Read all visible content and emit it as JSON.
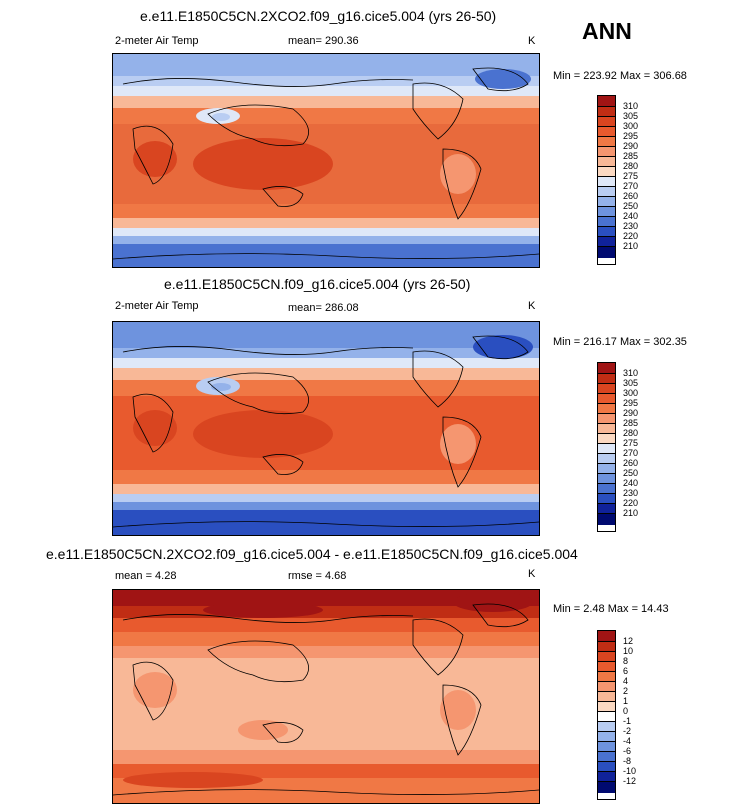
{
  "season": "ANN",
  "panels": [
    {
      "title": "e.e11.E1850C5CN.2XCO2.f09_g16.cice5.004 (yrs 26-50)",
      "variable": "2-meter Air Temp",
      "stat_center": "mean= 290.36",
      "units": "K",
      "minmax": "Min = 223.92 Max = 306.68",
      "levels": [
        "310",
        "305",
        "300",
        "295",
        "290",
        "285",
        "280",
        "275",
        "270",
        "260",
        "250",
        "240",
        "230",
        "220",
        "210"
      ],
      "colors": [
        "#a01414",
        "#c02d14",
        "#d94520",
        "#e85a2e",
        "#f07845",
        "#f59670",
        "#f8b897",
        "#fbd9c2",
        "#dfe8f8",
        "#b9cdf2",
        "#94b2ea",
        "#6e93de",
        "#4a72d0",
        "#2a4fc0",
        "#10229a",
        "#000a70"
      ]
    },
    {
      "title": "e.e11.E1850C5CN.f09_g16.cice5.004 (yrs 26-50)",
      "variable": "2-meter Air Temp",
      "stat_center": "mean= 286.08",
      "units": "K",
      "minmax": "Min = 216.17 Max = 302.35",
      "levels": [
        "310",
        "305",
        "300",
        "295",
        "290",
        "285",
        "280",
        "275",
        "270",
        "260",
        "250",
        "240",
        "230",
        "220",
        "210"
      ],
      "colors": [
        "#a01414",
        "#c02d14",
        "#d94520",
        "#e85a2e",
        "#f07845",
        "#f59670",
        "#f8b897",
        "#fbd9c2",
        "#dfe8f8",
        "#b9cdf2",
        "#94b2ea",
        "#6e93de",
        "#4a72d0",
        "#2a4fc0",
        "#10229a",
        "#000a70"
      ]
    },
    {
      "title": "e.e11.E1850C5CN.2XCO2.f09_g16.cice5.004 - e.e11.E1850C5CN.f09_g16.cice5.004",
      "variable": "mean =  4.28",
      "stat_center": "rmse =  4.68",
      "units": "K",
      "minmax": "Min =  2.48 Max =  14.43",
      "levels": [
        "12",
        "10",
        "8",
        "6",
        "4",
        "2",
        "1",
        "0",
        "-1",
        "-2",
        "-4",
        "-6",
        "-8",
        "-10",
        "-12"
      ],
      "colors": [
        "#a01414",
        "#c02d14",
        "#d94520",
        "#e85a2e",
        "#f07845",
        "#f59670",
        "#f8b897",
        "#fbd9c2",
        "#ffffff",
        "#b9cdf2",
        "#94b2ea",
        "#6e93de",
        "#4a72d0",
        "#2a4fc0",
        "#10229a",
        "#000a70"
      ]
    }
  ]
}
